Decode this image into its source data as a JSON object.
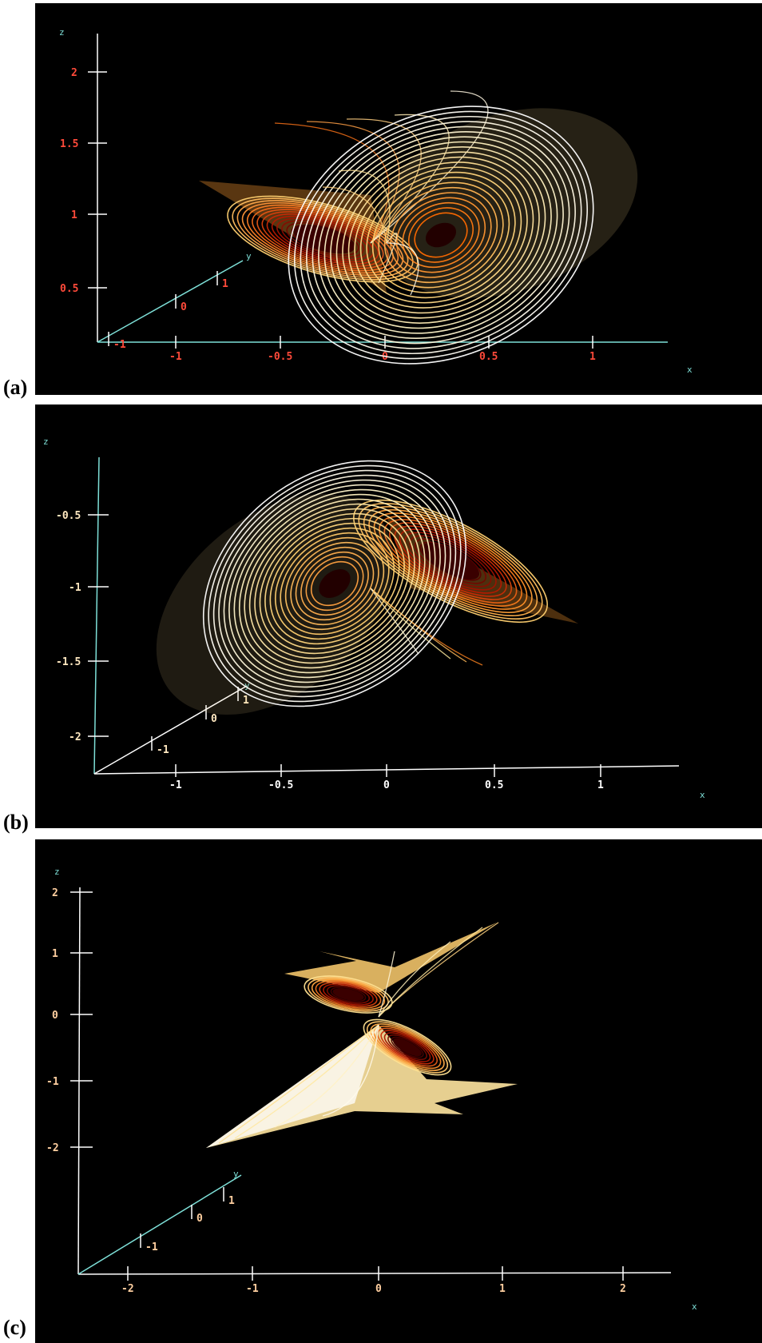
{
  "chart_data": [
    {
      "type": "scatter",
      "panel_label": "(a)",
      "axes_color": "#7ee0d8",
      "tick_color": "#ff4a3a",
      "colormap": [
        "#8a0000",
        "#ff7a18",
        "#ffe39a",
        "#ffffff"
      ],
      "xlabel": "x",
      "ylabel": "y",
      "zlabel": "z",
      "x_ticks": [
        "-1",
        "-0.5",
        "0",
        "0.5",
        "1"
      ],
      "y_ticks": [
        "-1",
        "0",
        "1"
      ],
      "z_ticks": [
        "0.5",
        "1",
        "1.5",
        "2"
      ],
      "xlim": [
        -1.4,
        1.35
      ],
      "ylim": [
        -1.4,
        1.5
      ],
      "zlim": [
        0.1,
        2.2
      ],
      "grid": false
    },
    {
      "type": "scatter",
      "panel_label": "(b)",
      "axes_color": "#ffffff",
      "tick_color": "#ffe8c0",
      "colormap": [
        "#6a0000",
        "#ff8a20",
        "#ffe890",
        "#ffffff"
      ],
      "xlabel": "x",
      "ylabel": "y",
      "zlabel": "z",
      "x_ticks": [
        "-1",
        "-0.5",
        "0",
        "0.5",
        "1"
      ],
      "y_ticks": [
        "-1",
        "0",
        "1"
      ],
      "z_ticks": [
        "-0.5",
        "-1",
        "-1.5",
        "-2"
      ],
      "xlim": [
        -1.4,
        1.4
      ],
      "ylim": [
        -1.4,
        1.4
      ],
      "zlim": [
        -2.25,
        -0.2
      ],
      "grid": false
    },
    {
      "type": "scatter",
      "panel_label": "(c)",
      "axes_color": "#ffffff",
      "tick_color": "#ffcfa0",
      "colormap": [
        "#7a0000",
        "#ff8a20",
        "#ffe890",
        "#ffffff"
      ],
      "xlabel": "x",
      "ylabel": "y",
      "zlabel": "z",
      "x_ticks": [
        "-2",
        "-1",
        "0",
        "1",
        "2"
      ],
      "y_ticks": [
        "-1",
        "0",
        "1"
      ],
      "z_ticks": [
        "2",
        "1",
        "0",
        "-1",
        "-2"
      ],
      "xlim": [
        -2.4,
        2.4
      ],
      "ylim": [
        -2.4,
        2.4
      ],
      "zlim": [
        -2.7,
        2.2
      ],
      "grid": false
    }
  ]
}
